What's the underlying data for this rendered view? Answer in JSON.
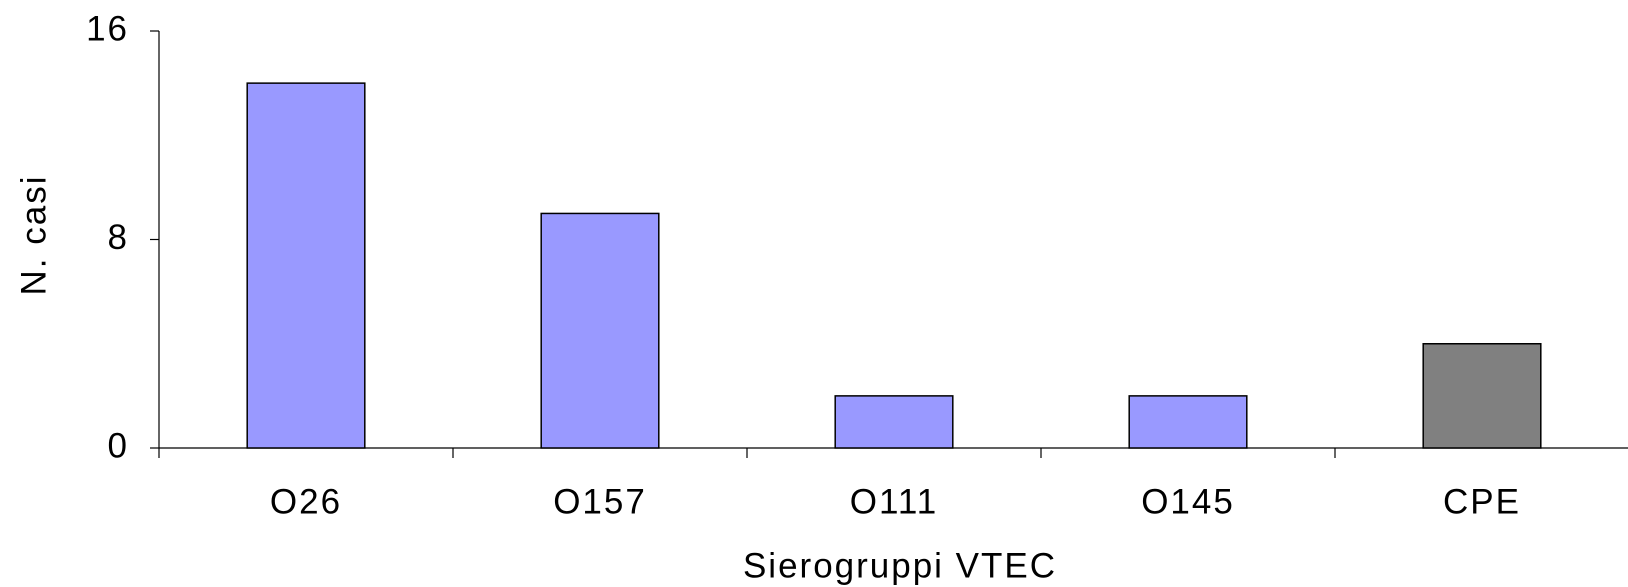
{
  "chart_data": {
    "type": "bar",
    "x_label": "Sierogruppi VTEC",
    "y_label": "N. casi",
    "categories": [
      "O26",
      "O157",
      "O111",
      "O145",
      "CPE"
    ],
    "values": [
      14,
      9,
      2,
      2,
      4
    ],
    "colors": [
      "#9999ff",
      "#9999ff",
      "#9999ff",
      "#9999ff",
      "#808080"
    ],
    "ylim": [
      0,
      16
    ],
    "yticks": [
      0,
      8,
      16
    ],
    "grid": false
  }
}
